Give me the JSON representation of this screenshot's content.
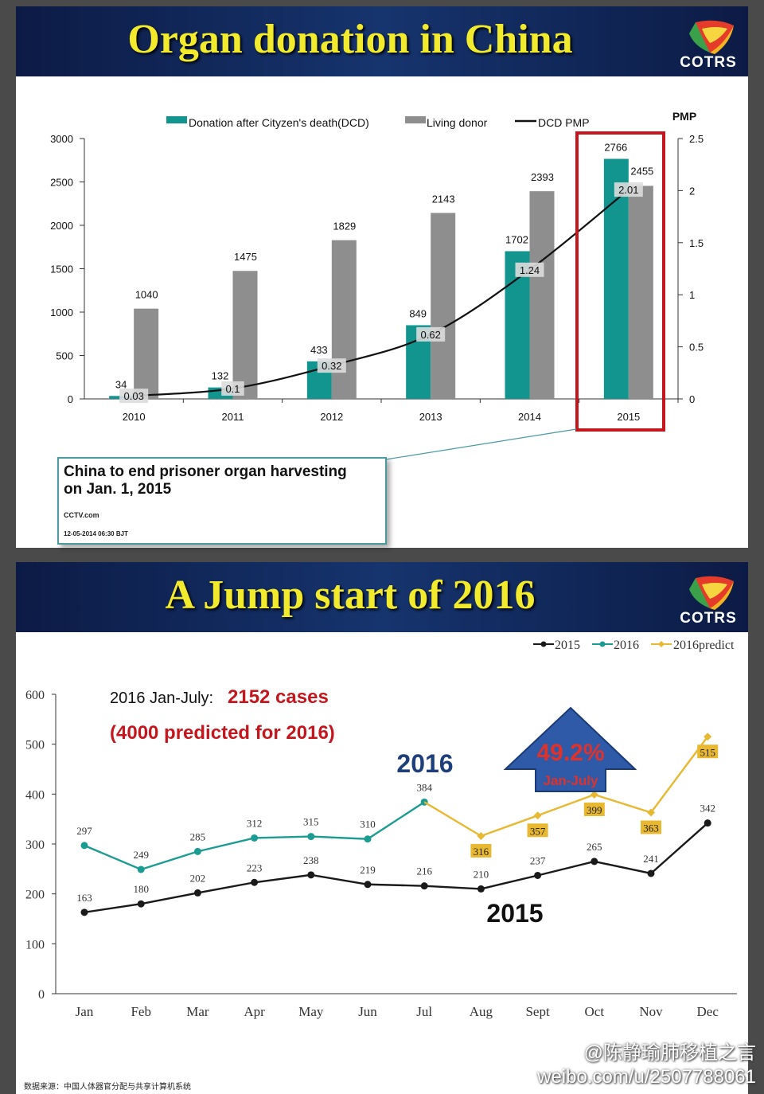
{
  "slide1": {
    "title": "Organ donation in China",
    "logo_text": "COTRS",
    "news": {
      "headline": "China to end prisoner organ harvesting on Jan. 1, 2015",
      "source": "CCTV.com",
      "date": "12-05-2014 06:30 BJT"
    }
  },
  "slide2": {
    "title": "A Jump start of 2016",
    "logo_text": "COTRS",
    "annotation_prefix": "2016 Jan-July:",
    "annotation_value": "2152 cases",
    "annotation_predicted": "(4000 predicted for 2016)",
    "label_2016": "2016",
    "label_2015": "2015",
    "arrow_pct": "49.2%",
    "arrow_sub": "Jan-July"
  },
  "footer": {
    "source": "数据来源：中国人体器官分配与共享计算机系统",
    "watermark_user": "@陈静瑜肺移植之言",
    "watermark_url": "weibo.com/u/2507788061"
  },
  "colors": {
    "dcd": "#12958f",
    "living": "#8e8e8e",
    "pmp_line": "#111111",
    "line2015": "#1a1a1a",
    "line2016": "#1b9c92",
    "line2016p": "#e8b830",
    "highlight": "#c4161c",
    "title_yellow": "#f2ea2c"
  },
  "chart_data": [
    {
      "type": "bar",
      "categories": [
        "2010",
        "2011",
        "2012",
        "2013",
        "2014",
        "2015"
      ],
      "series": [
        {
          "name": "Donation after Cityzen's death(DCD)",
          "values": [
            34,
            132,
            433,
            849,
            1702,
            2766
          ]
        },
        {
          "name": "Living donor",
          "values": [
            1040,
            1475,
            1829,
            2143,
            2393,
            2455
          ]
        },
        {
          "name": "DCD PMP",
          "type": "line",
          "axis": "right",
          "values": [
            0.03,
            0.1,
            0.32,
            0.62,
            1.24,
            2.01
          ]
        }
      ],
      "ylim": [
        0,
        3000
      ],
      "yticks": [
        0,
        500,
        1000,
        1500,
        2000,
        2500,
        3000
      ],
      "y2label": "PMP",
      "y2lim": [
        0,
        2.5
      ],
      "y2ticks": [
        0,
        0.5,
        1,
        1.5,
        2,
        2.5
      ],
      "legend": "top",
      "grid": false,
      "highlight_category": "2015"
    },
    {
      "type": "line",
      "categories": [
        "Jan",
        "Feb",
        "Mar",
        "Apr",
        "May",
        "Jun",
        "Jul",
        "Aug",
        "Sept",
        "Oct",
        "Nov",
        "Dec"
      ],
      "series": [
        {
          "name": "2015",
          "values": [
            163,
            180,
            202,
            223,
            238,
            219,
            216,
            210,
            237,
            265,
            241,
            342
          ]
        },
        {
          "name": "2016",
          "values": [
            297,
            249,
            285,
            312,
            315,
            310,
            384,
            null,
            null,
            null,
            null,
            null
          ]
        },
        {
          "name": "2016predict",
          "values": [
            null,
            null,
            null,
            null,
            null,
            null,
            384,
            316,
            357,
            399,
            363,
            515
          ]
        }
      ],
      "ylim": [
        0,
        600
      ],
      "yticks": [
        0,
        100,
        200,
        300,
        400,
        500,
        600
      ],
      "legend": "top-right",
      "grid": false
    }
  ]
}
